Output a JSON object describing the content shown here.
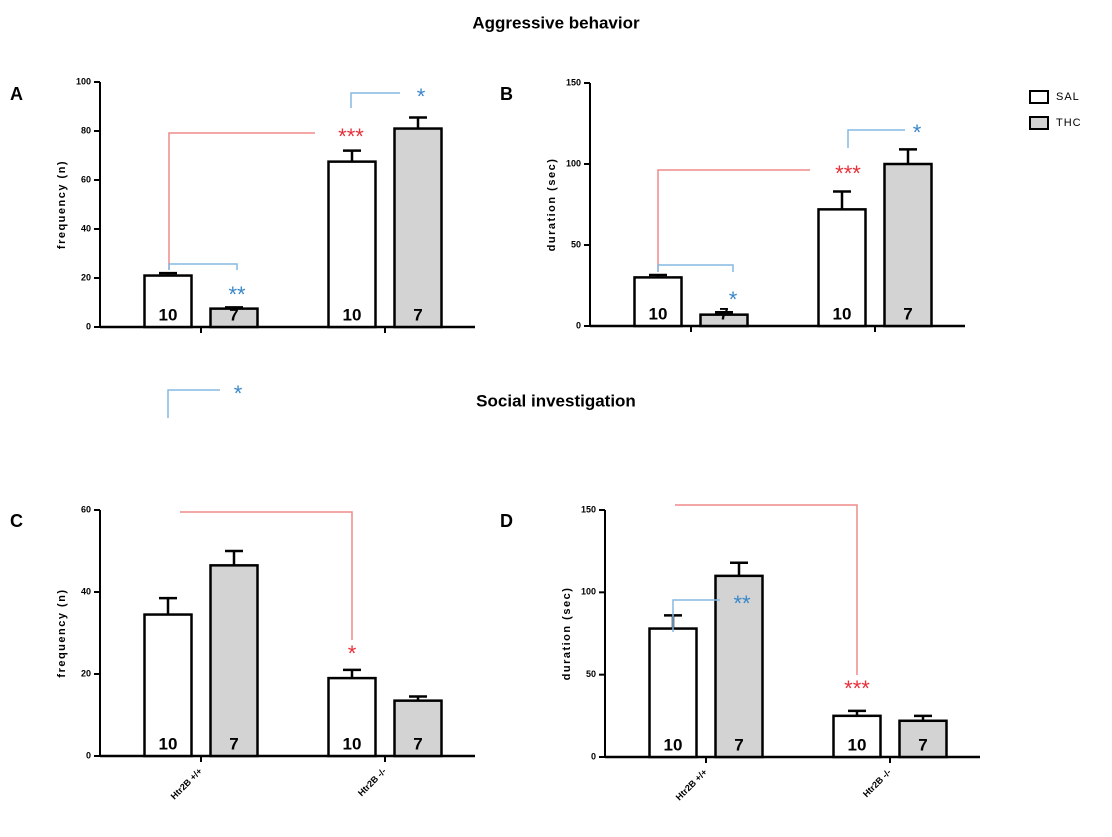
{
  "section_titles": [
    "Aggressive behavior",
    "Social investigation"
  ],
  "chart_data": [
    {
      "type": "bar",
      "panel": "A",
      "ylabel": "frequency (n)",
      "categories": [
        null,
        null
      ],
      "ylim": [
        0,
        100
      ],
      "yticks": [
        0,
        20,
        40,
        60,
        80,
        100
      ],
      "series": [
        {
          "name": "SAL",
          "color": "#ffffff",
          "values": [
            21,
            67.5
          ],
          "errors": [
            1,
            4.5
          ],
          "n": [
            10,
            10
          ]
        },
        {
          "name": "THC",
          "color": "#d3d3d3",
          "values": [
            7.5,
            81
          ],
          "errors": [
            0.5,
            4.5
          ],
          "n": [
            7,
            7
          ]
        }
      ],
      "annotations": [
        {
          "text": "***",
          "color": "#e8303a"
        },
        {
          "text": "*",
          "color": "#3a87c8"
        },
        {
          "text": "**",
          "color": "#3a87c8"
        }
      ]
    },
    {
      "type": "bar",
      "panel": "B",
      "ylabel": "duration (sec)",
      "categories": [
        null,
        null
      ],
      "ylim": [
        0,
        150
      ],
      "yticks": [
        0,
        50,
        100,
        150
      ],
      "series": [
        {
          "name": "SAL",
          "color": "#ffffff",
          "values": [
            30,
            72
          ],
          "errors": [
            1.5,
            11
          ],
          "n": [
            10,
            10
          ]
        },
        {
          "name": "THC",
          "color": "#d3d3d3",
          "values": [
            7,
            100
          ],
          "errors": [
            1.5,
            9
          ],
          "n": [
            7,
            7
          ]
        }
      ],
      "annotations": [
        {
          "text": "***",
          "color": "#e8303a"
        },
        {
          "text": "*",
          "color": "#3a87c8"
        },
        {
          "text": "*",
          "color": "#3a87c8"
        }
      ]
    },
    {
      "type": "bar",
      "panel": "C",
      "ylabel": "frequency (n)",
      "categories": [
        "Htr2B +/+",
        "Htr2B -/-"
      ],
      "ylim": [
        0,
        60
      ],
      "yticks": [
        0,
        20,
        40,
        60
      ],
      "series": [
        {
          "name": "SAL",
          "color": "#ffffff",
          "values": [
            34.5,
            19
          ],
          "errors": [
            4,
            2
          ],
          "n": [
            10,
            10
          ]
        },
        {
          "name": "THC",
          "color": "#d3d3d3",
          "values": [
            46.5,
            13.5
          ],
          "errors": [
            3.5,
            1
          ],
          "n": [
            7,
            7
          ]
        }
      ],
      "annotations": [
        {
          "text": "*",
          "color": "#3a87c8"
        },
        {
          "text": "*",
          "color": "#e8303a"
        }
      ]
    },
    {
      "type": "bar",
      "panel": "D",
      "ylabel": "duration (sec)",
      "categories": [
        "Htr2B +/+",
        "Htr2B -/-"
      ],
      "ylim": [
        0,
        150
      ],
      "yticks": [
        0,
        50,
        100,
        150
      ],
      "series": [
        {
          "name": "SAL",
          "color": "#ffffff",
          "values": [
            78,
            25
          ],
          "errors": [
            8,
            3
          ],
          "n": [
            10,
            10
          ]
        },
        {
          "name": "THC",
          "color": "#d3d3d3",
          "values": [
            110,
            22
          ],
          "errors": [
            8,
            3
          ],
          "n": [
            7,
            7
          ]
        }
      ],
      "annotations": [
        {
          "text": "**",
          "color": "#3a87c8"
        },
        {
          "text": "***",
          "color": "#e8303a"
        }
      ]
    }
  ]
}
